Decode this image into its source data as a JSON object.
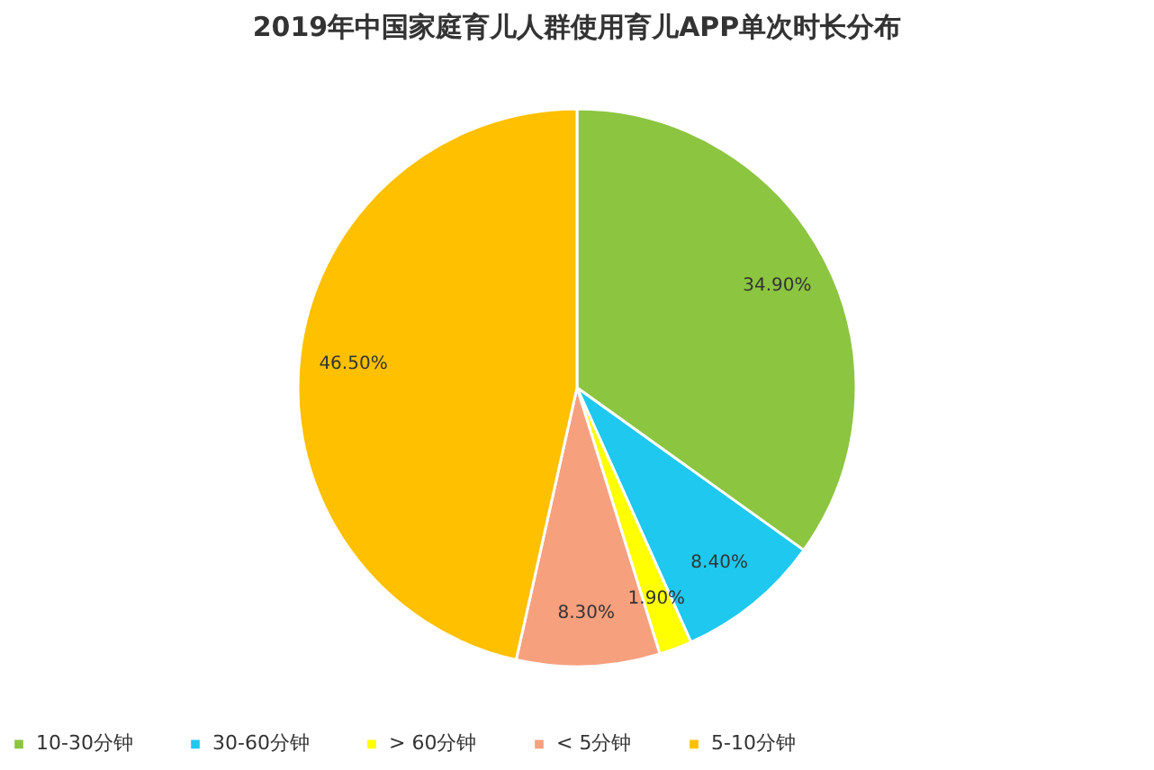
{
  "chart_data": {
    "type": "pie",
    "title": "2019年中国家庭育儿人群使用育儿APP单次时长分布",
    "categories": [
      "10-30分钟",
      "30-60分钟",
      "> 60分钟",
      "< 5分钟",
      "5-10分钟"
    ],
    "values": [
      34.9,
      8.4,
      1.9,
      8.3,
      46.5
    ],
    "colors": [
      "#8cc540",
      "#1ec8ef",
      "#ffff00",
      "#f7a07e",
      "#ffc000"
    ],
    "value_labels": [
      "34.90%",
      "8.40%",
      "1.90%",
      "8.30%",
      "46.50%"
    ],
    "legend": "bottom"
  }
}
